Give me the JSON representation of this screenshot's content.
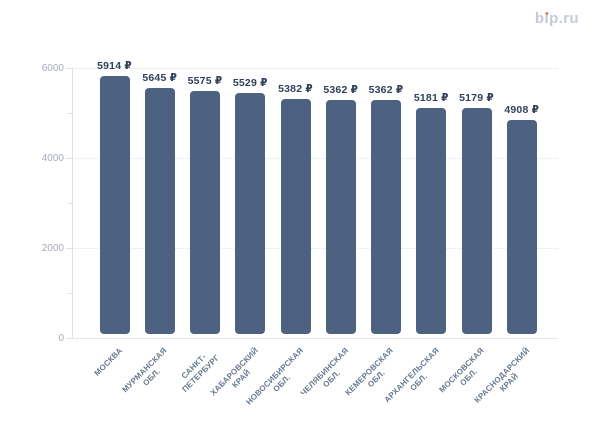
{
  "logo": {
    "text": "bip.ru",
    "color": "#c6c9d8",
    "dot_color": "#e8745c"
  },
  "chart_data": {
    "type": "bar",
    "title": "",
    "xlabel": "",
    "ylabel": "",
    "legend": "none",
    "grid": "horizontal dotted lines at major y ticks",
    "ylim": [
      0,
      6000
    ],
    "y_major_ticks": [
      0,
      2000,
      4000,
      6000
    ],
    "y_minor_ticks": [
      1000,
      3000,
      5000
    ],
    "categories": [
      "Москва",
      "Мурманская обл.",
      "Санкт-Петербург",
      "Хабаровский край",
      "Новосибирская обл.",
      "Челябинская обл.",
      "Кемеровская обл.",
      "Архангельская обл.",
      "Московская обл.",
      "Краснодарский край"
    ],
    "category_display_lines": [
      [
        "МОСКВА"
      ],
      [
        "МУРМАНСКАЯ",
        "ОБЛ."
      ],
      [
        "САНКТ-",
        "ПЕТЕРБУРГ"
      ],
      [
        "ХАБАРОВСКИЙ",
        "КРАЙ"
      ],
      [
        "НОВОСИБИРСКАЯ",
        "ОБЛ."
      ],
      [
        "ЧЕЛЯБИНСКАЯ",
        "ОБЛ."
      ],
      [
        "КЕМЕРОВСКАЯ",
        "ОБЛ."
      ],
      [
        "АРХАНГЕЛЬСКАЯ",
        "ОБЛ."
      ],
      [
        "МОСКОВСКАЯ",
        "ОБЛ."
      ],
      [
        "КРАСНОДАРСКИЙ",
        "КРАЙ"
      ]
    ],
    "values": [
      5914,
      5645,
      5575,
      5529,
      5382,
      5362,
      5362,
      5181,
      5179,
      4908
    ],
    "value_labels": [
      "5914 ₽",
      "5645 ₽",
      "5575 ₽",
      "5529 ₽",
      "5382 ₽",
      "5362 ₽",
      "5362 ₽",
      "5181 ₽",
      "5179 ₽",
      "4908 ₽"
    ],
    "currency_symbol": "₽",
    "bar_color": "#4d6280",
    "value_label_color": "#32405a",
    "axis_tick_label_color": "#a6abbc",
    "category_label_color": "#67788f"
  }
}
